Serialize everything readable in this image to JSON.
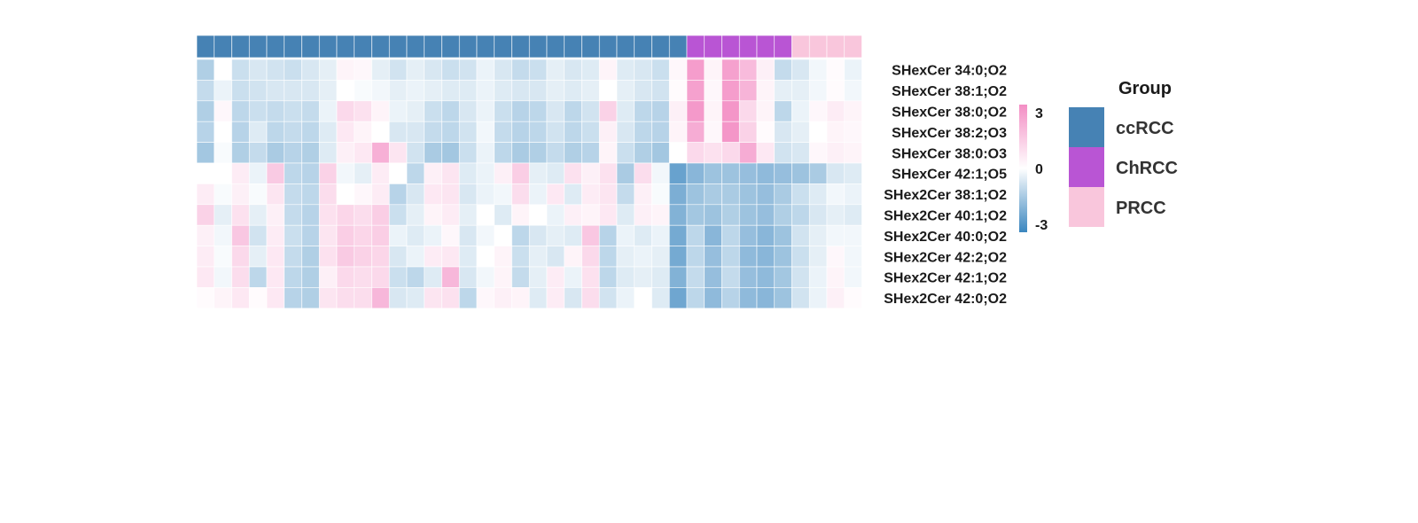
{
  "chart_data": {
    "type": "heatmap",
    "rows": [
      "SHexCer 34:0;O2",
      "SHexCer 38:1;O2",
      "SHexCer 38:0;O2",
      "SHexCer 38:2;O3",
      "SHexCer 38:0:O3",
      "SHexCer 42:1;O5",
      "SHex2Cer 38:1;O2",
      "SHex2Cer 40:1;O2",
      "SHex2Cer 40:0;O2",
      "SHex2Cer 42:2;O2",
      "SHex2Cer 42:1;O2",
      "SHex2Cer 42:0;O2"
    ],
    "column_groups": [
      "ccRCC",
      "ccRCC",
      "ccRCC",
      "ccRCC",
      "ccRCC",
      "ccRCC",
      "ccRCC",
      "ccRCC",
      "ccRCC",
      "ccRCC",
      "ccRCC",
      "ccRCC",
      "ccRCC",
      "ccRCC",
      "ccRCC",
      "ccRCC",
      "ccRCC",
      "ccRCC",
      "ccRCC",
      "ccRCC",
      "ccRCC",
      "ccRCC",
      "ccRCC",
      "ccRCC",
      "ccRCC",
      "ccRCC",
      "ccRCC",
      "ccRCC",
      "ChRCC",
      "ChRCC",
      "ChRCC",
      "ChRCC",
      "ChRCC",
      "ChRCC",
      "PRCC",
      "PRCC",
      "PRCC",
      "PRCC"
    ],
    "values": [
      [
        -1.2,
        0.0,
        -0.8,
        -0.6,
        -0.7,
        -0.8,
        -0.6,
        -0.4,
        0.3,
        0.2,
        -0.4,
        -0.7,
        -0.4,
        -0.6,
        -0.8,
        -0.7,
        -0.3,
        -0.6,
        -0.9,
        -0.8,
        -0.4,
        -0.6,
        -0.5,
        0.3,
        -0.5,
        -0.6,
        -0.8,
        0.2,
        2.6,
        0.3,
        2.5,
        1.8,
        0.4,
        -0.9,
        -0.6,
        -0.2,
        0.1,
        -0.3
      ],
      [
        -0.9,
        -0.3,
        -0.8,
        -0.7,
        -0.6,
        -0.6,
        -0.6,
        -0.4,
        0.0,
        -0.1,
        -0.2,
        -0.4,
        -0.3,
        -0.4,
        -0.5,
        -0.5,
        -0.3,
        -0.5,
        -0.6,
        -0.6,
        -0.4,
        -0.5,
        -0.4,
        0.0,
        -0.4,
        -0.6,
        -0.7,
        0.1,
        2.5,
        0.2,
        2.6,
        2.0,
        0.3,
        -0.4,
        -0.4,
        -0.2,
        0.1,
        -0.2
      ],
      [
        -1.2,
        0.2,
        -1.0,
        -0.8,
        -0.9,
        -0.8,
        -0.9,
        -0.3,
        1.0,
        0.8,
        0.3,
        -0.3,
        -0.4,
        -0.8,
        -1.0,
        -0.6,
        -0.3,
        -0.8,
        -1.1,
        -1.0,
        -0.6,
        -1.0,
        -0.7,
        1.2,
        -0.5,
        -1.0,
        -1.1,
        0.4,
        2.7,
        0.3,
        2.8,
        1.0,
        0.3,
        -1.0,
        -0.3,
        0.2,
        0.5,
        0.3
      ],
      [
        -1.1,
        0.0,
        -1.1,
        -0.5,
        -1.0,
        -0.9,
        -1.0,
        -0.5,
        0.6,
        0.3,
        0.0,
        -0.6,
        -0.6,
        -0.9,
        -1.0,
        -0.7,
        -0.2,
        -0.9,
        -1.1,
        -1.0,
        -0.7,
        -1.0,
        -0.8,
        0.4,
        -0.6,
        -1.0,
        -1.1,
        0.3,
        2.2,
        0.2,
        2.8,
        1.2,
        0.1,
        -0.6,
        -0.4,
        0.0,
        0.3,
        0.2
      ],
      [
        -1.4,
        -0.1,
        -1.2,
        -0.9,
        -1.3,
        -1.1,
        -1.2,
        -0.5,
        0.4,
        0.6,
        2.1,
        0.7,
        -0.7,
        -1.3,
        -1.4,
        -0.8,
        -0.3,
        -1.0,
        -1.3,
        -1.2,
        -0.9,
        -1.2,
        -1.1,
        0.3,
        -0.8,
        -1.2,
        -1.4,
        0.0,
        1.0,
        0.8,
        1.0,
        2.2,
        0.6,
        -0.7,
        -0.6,
        0.2,
        0.4,
        0.3
      ],
      [
        0.0,
        0.0,
        0.5,
        -0.3,
        1.4,
        -1.0,
        -1.1,
        1.2,
        -0.2,
        -0.4,
        0.5,
        0.0,
        -1.0,
        0.4,
        0.7,
        -0.5,
        -0.3,
        0.4,
        1.3,
        -0.4,
        -0.5,
        0.8,
        0.4,
        0.8,
        -1.3,
        0.9,
        -0.2,
        -2.3,
        -1.8,
        -1.5,
        -1.5,
        -1.6,
        -1.7,
        -1.6,
        -1.5,
        -1.3,
        -0.6,
        -0.5
      ],
      [
        0.5,
        -0.1,
        0.4,
        -0.1,
        0.7,
        -0.9,
        -1.0,
        0.9,
        0.0,
        0.2,
        0.5,
        -1.1,
        -0.6,
        0.6,
        0.7,
        -0.6,
        -0.3,
        -0.2,
        0.9,
        -0.3,
        0.6,
        -0.5,
        0.5,
        0.7,
        -0.9,
        0.4,
        -0.1,
        -2.0,
        -1.5,
        -1.3,
        -1.3,
        -1.5,
        -1.6,
        -1.3,
        -0.8,
        -0.5,
        -0.2,
        -0.3
      ],
      [
        1.2,
        -0.4,
        0.8,
        -0.4,
        0.4,
        -0.9,
        -1.1,
        0.8,
        1.1,
        0.9,
        1.3,
        -0.8,
        -0.4,
        0.3,
        0.5,
        -0.4,
        0.0,
        -0.5,
        0.3,
        0.0,
        -0.3,
        0.4,
        0.3,
        0.6,
        -0.5,
        0.4,
        0.3,
        -1.9,
        -1.4,
        -1.5,
        -1.2,
        -1.5,
        -1.6,
        -1.2,
        -1.0,
        -0.6,
        -0.4,
        -0.5
      ],
      [
        0.4,
        -0.2,
        1.5,
        -0.7,
        0.5,
        -0.8,
        -1.1,
        0.7,
        1.3,
        1.1,
        1.3,
        -0.3,
        -0.5,
        -0.3,
        0.2,
        -0.6,
        -0.2,
        0.0,
        -1.0,
        -0.6,
        -0.4,
        -0.5,
        1.5,
        -1.1,
        -0.3,
        -0.5,
        -0.3,
        -2.1,
        -1.0,
        -1.8,
        -1.0,
        -1.6,
        -1.8,
        -1.5,
        -0.7,
        -0.4,
        -0.2,
        -0.2
      ],
      [
        0.5,
        -0.1,
        1.0,
        -0.4,
        0.6,
        -0.9,
        -1.2,
        0.8,
        1.4,
        1.2,
        1.1,
        -0.6,
        -0.3,
        0.5,
        0.6,
        -0.5,
        0.0,
        0.3,
        -0.8,
        -0.4,
        -0.6,
        0.3,
        1.0,
        -1.0,
        -0.4,
        -0.3,
        -0.4,
        -2.1,
        -1.0,
        -1.6,
        -1.0,
        -1.7,
        -1.8,
        -1.5,
        -0.8,
        -0.4,
        0.2,
        -0.2
      ],
      [
        0.6,
        -0.2,
        0.9,
        -1.0,
        0.6,
        -1.0,
        -1.2,
        0.4,
        1.0,
        0.9,
        1.0,
        -0.8,
        -1.0,
        -0.5,
        1.9,
        -0.6,
        -0.2,
        0.3,
        -0.9,
        -0.4,
        0.5,
        -0.3,
        0.8,
        -1.0,
        -0.5,
        -0.4,
        -0.5,
        -1.9,
        -0.9,
        -1.6,
        -0.9,
        -1.6,
        -1.7,
        -1.4,
        -0.7,
        -0.3,
        0.3,
        -0.2
      ],
      [
        0.1,
        0.3,
        0.6,
        0.1,
        0.6,
        -1.1,
        -1.2,
        0.7,
        0.9,
        0.9,
        1.9,
        -0.6,
        -0.5,
        0.7,
        0.8,
        -1.0,
        0.2,
        0.4,
        0.3,
        -0.5,
        0.5,
        -0.6,
        0.9,
        -0.7,
        -0.3,
        0.0,
        -0.5,
        -2.2,
        -1.0,
        -1.7,
        -1.1,
        -1.7,
        -1.8,
        -1.5,
        -0.7,
        -0.3,
        0.4,
        0.1
      ]
    ],
    "color_scale": {
      "min": -3,
      "mid": 0,
      "max": 3,
      "low_color": "#3a86bf",
      "mid_color": "#ffffff",
      "high_color": "#f38ec4"
    },
    "color_scale_ticks": [
      "3",
      "0",
      "-3"
    ],
    "legend": {
      "title": "Group",
      "placement": "right",
      "entries": [
        {
          "label": "ccRCC",
          "color": "#4682b4"
        },
        {
          "label": "ChRCC",
          "color": "#b955d4"
        },
        {
          "label": "PRCC",
          "color": "#f9c6dc"
        }
      ]
    }
  }
}
